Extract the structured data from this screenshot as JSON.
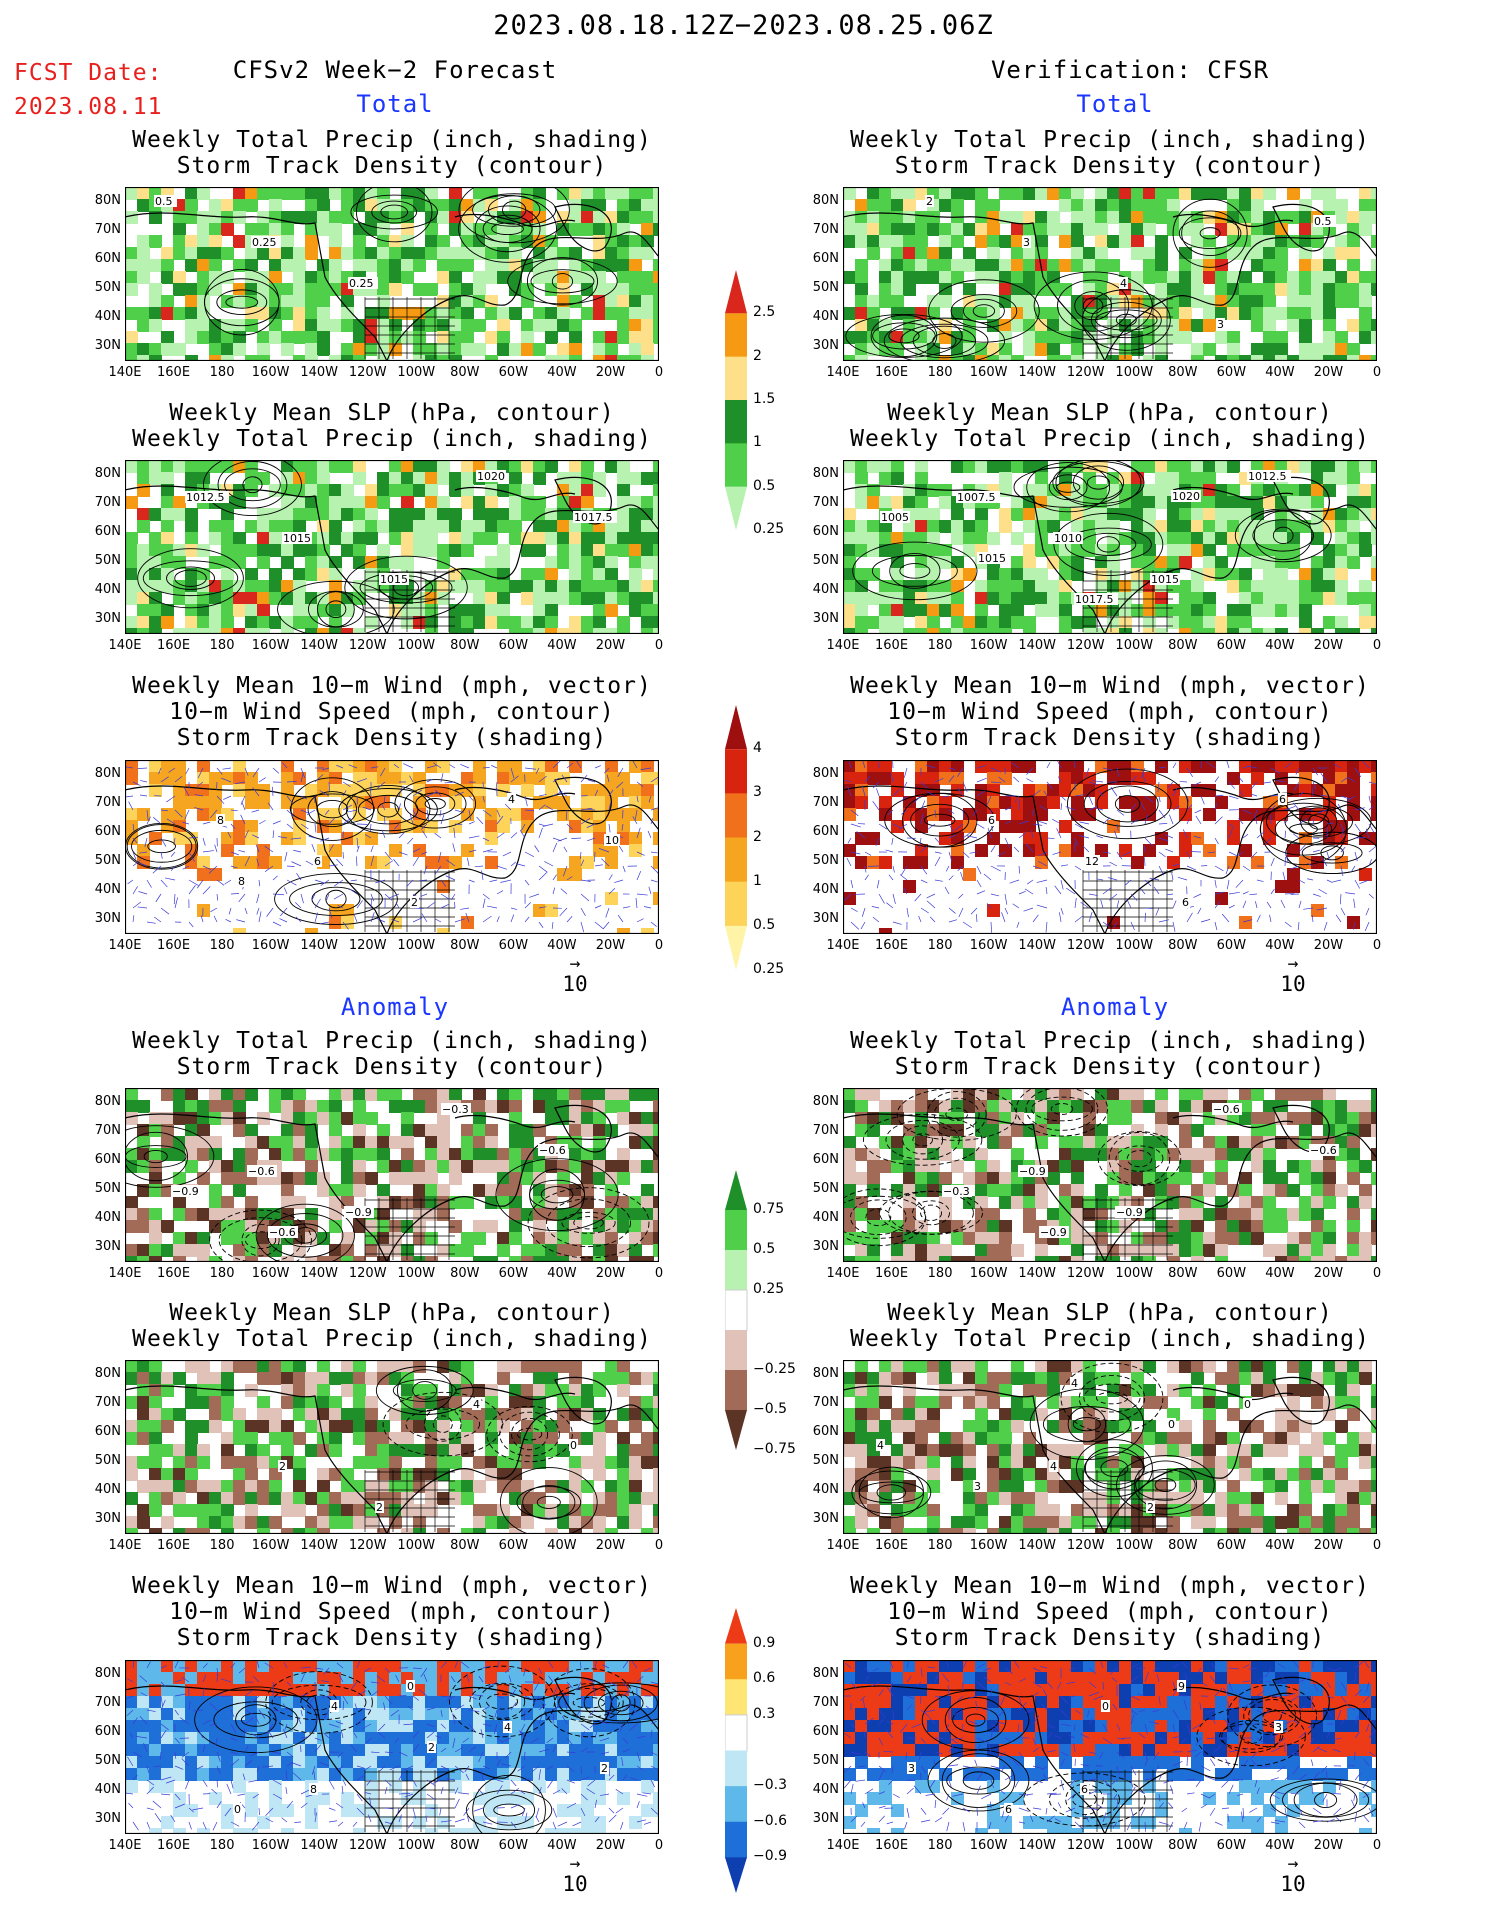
{
  "title": "2023.08.18.12Z−2023.08.25.06Z",
  "fcst_label": "FCST Date:",
  "fcst_date": "2023.08.11",
  "left_header": "CFSv2 Week−2 Forecast",
  "right_header": "Verification: CFSR",
  "section_total": "Total",
  "section_anomaly": "Anomaly",
  "panel_titles": {
    "precip_track": [
      "Weekly Total Precip (inch, shading)",
      "Storm Track Density (contour)"
    ],
    "slp_precip": [
      "Weekly Mean SLP (hPa, contour)",
      "Weekly Total Precip (inch, shading)"
    ],
    "wind_track": [
      "Weekly Mean 10−m Wind (mph, vector)",
      "10−m Wind Speed (mph, contour)",
      "Storm Track Density (shading)"
    ]
  },
  "lat_labels": [
    "80N",
    "70N",
    "60N",
    "50N",
    "40N",
    "30N"
  ],
  "lon_labels": [
    "140E",
    "160E",
    "180",
    "160W",
    "140W",
    "120W",
    "100W",
    "80W",
    "60W",
    "40W",
    "20W",
    "0"
  ],
  "vector_ref": "10",
  "colorbars": {
    "precip_total": {
      "labels": [
        "2.5",
        "2",
        "1.5",
        "1",
        "0.5",
        "0.25"
      ],
      "colors": [
        "#d9271e",
        "#f59a12",
        "#ffe08a",
        "#1f8f2a",
        "#4fcf4a",
        "#b7f2b0"
      ]
    },
    "track_total": {
      "labels": [
        "4",
        "3",
        "2",
        "1",
        "0.5",
        "0.25"
      ],
      "colors": [
        "#9e1010",
        "#d8240f",
        "#f0701b",
        "#f5a51f",
        "#fdd35a",
        "#fff3a8"
      ]
    },
    "precip_anom": {
      "labels": [
        "0.75",
        "0.5",
        "0.25",
        "−0.25",
        "−0.5",
        "−0.75"
      ],
      "colors": [
        "#1f8f2a",
        "#4fcf4a",
        "#b7f2b0",
        "#ffffff",
        "#e0c2b8",
        "#a26b58",
        "#5b3426"
      ]
    },
    "track_anom": {
      "labels": [
        "0.9",
        "0.6",
        "0.3",
        "−0.3",
        "−0.6",
        "−0.9"
      ],
      "colors": [
        "#ee3b17",
        "#f7a11d",
        "#ffe574",
        "#ffffff",
        "#bfe6f5",
        "#5eb8ea",
        "#1f6fd8",
        "#0e3fb0"
      ]
    }
  },
  "contour_labels": {
    "fc_total_track": [
      "0.5",
      "0.25",
      "0.25"
    ],
    "fc_total_slp": [
      "1012.5",
      "1015",
      "1015",
      "1020",
      "1017.5"
    ],
    "fc_total_wind": [
      "8",
      "6",
      "2",
      "4",
      "10",
      "8"
    ],
    "vf_total_track": [
      "2",
      "3",
      "4",
      "3",
      "0.5"
    ],
    "vf_total_slp": [
      "1007.5",
      "1010",
      "1015",
      "1012.5",
      "1005",
      "1015",
      "1017.5",
      "1020"
    ],
    "vf_total_wind": [
      "6",
      "12",
      "6",
      "6"
    ],
    "fc_anom_track": [
      "−0.6",
      "−0.9",
      "−0.3",
      "−0.6",
      "−0.9",
      "−0.6"
    ],
    "fc_anom_slp": [
      "2",
      "2",
      "4",
      "0"
    ],
    "fc_anom_wind": [
      "8",
      "0",
      "4",
      "2",
      "0",
      "4",
      "2"
    ],
    "vf_anom_track": [
      "−0.9",
      "−0.9",
      "−0.6",
      "−0.6",
      "−0.3",
      "−0.9"
    ],
    "vf_anom_slp": [
      "4",
      "2",
      "0",
      "4",
      "3",
      "4",
      "0"
    ],
    "vf_anom_wind": [
      "6",
      "9",
      "3",
      "3",
      "6",
      "0"
    ]
  },
  "colors": {
    "title_red": "#e8201d",
    "section_blue": "#1a36ff"
  }
}
